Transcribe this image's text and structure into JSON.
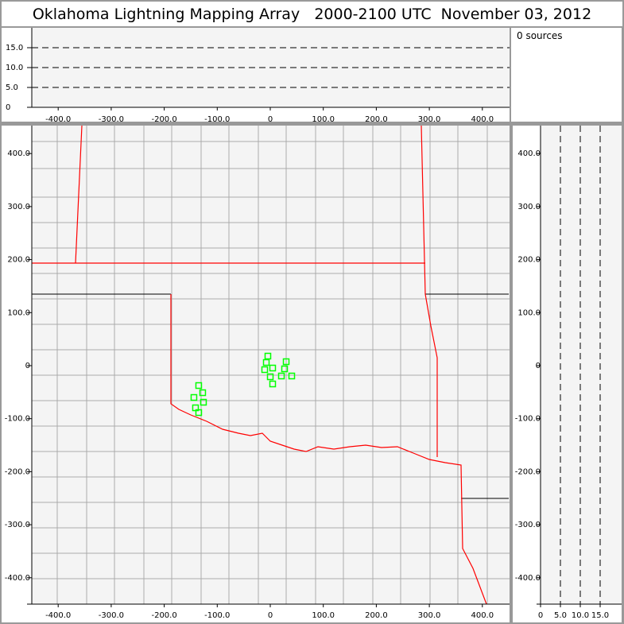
{
  "title": "Oklahoma Lightning Mapping Array   2000-2100 UTC  November 03, 2012",
  "sources_label": "0 sources",
  "colors": {
    "background": "#f4f4f4",
    "state_border": "#ff0000",
    "county": "#999999",
    "source": "#00ff00",
    "frame": "#999999"
  },
  "chart_data": [
    {
      "type": "line",
      "panel": "altitude-vs-east",
      "xlim": [
        -450,
        450
      ],
      "ylim": [
        0,
        20
      ],
      "xticks": [
        "-400.0",
        "-300.0",
        "-200.0",
        "-100.0",
        "0",
        "100.0",
        "200.0",
        "300.0",
        "400.0"
      ],
      "xtick_values": [
        -400,
        -300,
        -200,
        -100,
        0,
        100,
        200,
        300,
        400
      ],
      "yticks": [
        "0",
        "5.0",
        "10.0",
        "15.0"
      ],
      "ytick_values": [
        0,
        5,
        10,
        15
      ],
      "dashed_gridlines": [
        5,
        10,
        15
      ]
    },
    {
      "type": "scatter",
      "panel": "plan-view-map",
      "xlim": [
        -450,
        450
      ],
      "ylim": [
        -450,
        450
      ],
      "xticks": [
        "-400.0",
        "-300.0",
        "-200.0",
        "-100.0",
        "0",
        "100.0",
        "200.0",
        "300.0",
        "400.0"
      ],
      "xtick_values": [
        -400,
        -300,
        -200,
        -100,
        0,
        100,
        200,
        300,
        400
      ],
      "yticks": [
        "400.0",
        "300.0",
        "200.0",
        "100.0",
        "0",
        "-100.0",
        "-200.0",
        "-300.0",
        "-400.0"
      ],
      "ytick_values": [
        400,
        300,
        200,
        100,
        0,
        -100,
        -200,
        -300,
        -400
      ],
      "points": [
        [
          -4.5,
          18
        ],
        [
          -7.5,
          6
        ],
        [
          -10.5,
          -7.5
        ],
        [
          4.5,
          -4.5
        ],
        [
          30,
          7.5
        ],
        [
          27,
          -6
        ],
        [
          21,
          -19.5
        ],
        [
          40.5,
          -19.5
        ],
        [
          0,
          -21
        ],
        [
          4.5,
          -34.5
        ],
        [
          -135,
          -37.5
        ],
        [
          -127.5,
          -51
        ],
        [
          -144,
          -60
        ],
        [
          -126,
          -69
        ],
        [
          -141,
          -79.5
        ],
        [
          -135,
          -88.5
        ]
      ],
      "marker": "open-square"
    },
    {
      "type": "line",
      "panel": "north-vs-altitude",
      "xlim": [
        0,
        20
      ],
      "ylim": [
        -450,
        450
      ],
      "xticks": [
        "0",
        "5.0",
        "10.0",
        "15.0"
      ],
      "xtick_values": [
        0,
        5,
        10,
        15
      ],
      "yticks": [
        "400.0",
        "300.0",
        "200.0",
        "100.0",
        "0",
        "-100.0",
        "-200.0",
        "-300.0",
        "-400.0"
      ],
      "ytick_values": [
        400,
        300,
        200,
        100,
        0,
        -100,
        -200,
        -300,
        -400
      ],
      "dashed_gridlines": [
        5,
        10,
        15
      ]
    }
  ]
}
